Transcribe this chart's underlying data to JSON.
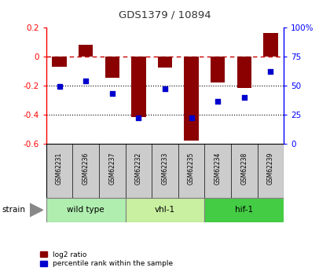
{
  "title": "GDS1379 / 10894",
  "samples": [
    "GSM62231",
    "GSM62236",
    "GSM62237",
    "GSM62232",
    "GSM62233",
    "GSM62235",
    "GSM62234",
    "GSM62238",
    "GSM62239"
  ],
  "log2_ratio": [
    -0.07,
    0.08,
    -0.15,
    -0.42,
    -0.08,
    -0.58,
    -0.18,
    -0.22,
    0.16
  ],
  "percentile_rank": [
    49,
    54,
    43,
    22,
    47,
    22,
    36,
    40,
    62
  ],
  "ylim_left": [
    -0.6,
    0.2
  ],
  "ylim_right": [
    0,
    100
  ],
  "right_ticks": [
    0,
    25,
    50,
    75,
    100
  ],
  "right_tick_labels": [
    "0",
    "25",
    "50",
    "75",
    "100%"
  ],
  "left_ticks": [
    -0.6,
    -0.4,
    -0.2,
    0.0,
    0.2
  ],
  "left_tick_labels": [
    "-0.6",
    "-0.4",
    "-0.2",
    "0",
    "0.2"
  ],
  "groups": [
    {
      "label": "wild type",
      "indices": [
        0,
        1,
        2
      ],
      "color": "#b0eeb0"
    },
    {
      "label": "vhl-1",
      "indices": [
        3,
        4,
        5
      ],
      "color": "#c8f0a0"
    },
    {
      "label": "hif-1",
      "indices": [
        6,
        7,
        8
      ],
      "color": "#44cc44"
    }
  ],
  "bar_color": "#8b0000",
  "dot_color": "#0000cd",
  "hline_color": "#cc0000",
  "dotline_color": "#000000",
  "strain_label": "strain",
  "legend_bar_label": "log2 ratio",
  "legend_dot_label": "percentile rank within the sample",
  "background_color": "#ffffff",
  "title_color": "#333333",
  "sample_box_color": "#cccccc",
  "bar_width": 0.55
}
